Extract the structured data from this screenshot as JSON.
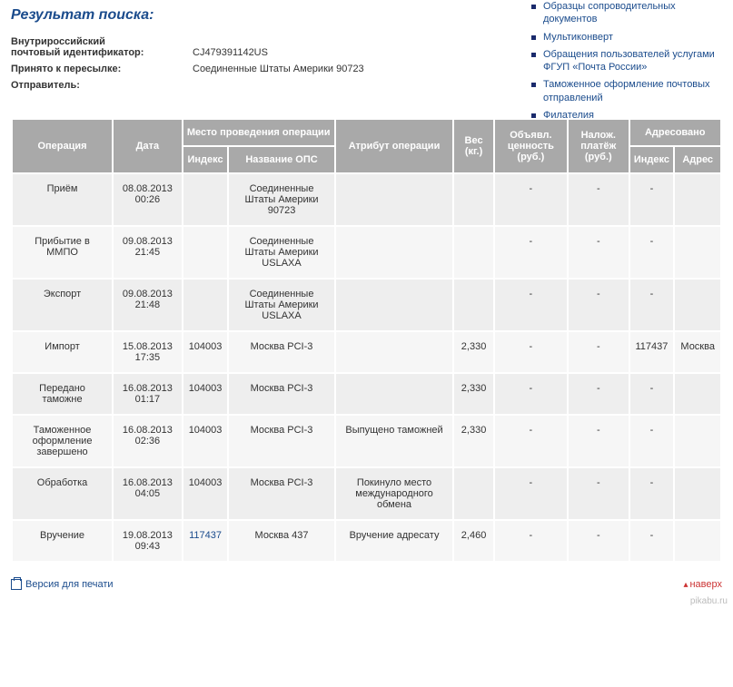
{
  "title": "Результат поиска:",
  "info": {
    "id_label1": "Внутрироссийский",
    "id_label2": "почтовый идентификатор:",
    "id_value": "CJ479391142US",
    "accepted_label": "Принято к пересылке:",
    "accepted_value": "Соединенные Штаты Америки 90723",
    "sender_label": "Отправитель:",
    "sender_value": ""
  },
  "sidebar": {
    "items": [
      {
        "label": "Образцы сопроводительных документов"
      },
      {
        "label": "Мультиконверт"
      },
      {
        "label": "Обращения пользователей услугами ФГУП «Почта России»"
      },
      {
        "label": "Таможенное оформление почтовых отправлений"
      },
      {
        "label": "Филателия"
      }
    ]
  },
  "table": {
    "headers": {
      "operation": "Операция",
      "date": "Дата",
      "place_group": "Место проведения операции",
      "index": "Индекс",
      "ops_name": "Название ОПС",
      "attribute": "Атрибут операции",
      "weight": "Вес (кг.)",
      "declared": "Объявл. ценность (руб.)",
      "cod": "Налож. платёж (руб.)",
      "addressed_group": "Адресовано",
      "addr_index": "Индекс",
      "addr_addr": "Адрес"
    },
    "rows": [
      {
        "op": "Приём",
        "date": "08.08.2013 00:26",
        "idx": "",
        "ops": "Соединенные Штаты Америки 90723",
        "attr": "",
        "weight": "",
        "decl": "-",
        "cod": "-",
        "ai": "-",
        "aa": ""
      },
      {
        "op": "Прибытие в ММПО",
        "date": "09.08.2013 21:45",
        "idx": "",
        "ops": "Соединенные Штаты Америки USLAXA",
        "attr": "",
        "weight": "",
        "decl": "-",
        "cod": "-",
        "ai": "-",
        "aa": ""
      },
      {
        "op": "Экспорт",
        "date": "09.08.2013 21:48",
        "idx": "",
        "ops": "Соединенные Штаты Америки USLAXA",
        "attr": "",
        "weight": "",
        "decl": "-",
        "cod": "-",
        "ai": "-",
        "aa": ""
      },
      {
        "op": "Импорт",
        "date": "15.08.2013 17:35",
        "idx": "104003",
        "ops": "Москва PCI-3",
        "attr": "",
        "weight": "2,330",
        "decl": "-",
        "cod": "-",
        "ai": "117437",
        "aa": "Москва"
      },
      {
        "op": "Передано таможне",
        "date": "16.08.2013 01:17",
        "idx": "104003",
        "ops": "Москва PCI-3",
        "attr": "",
        "weight": "2,330",
        "decl": "-",
        "cod": "-",
        "ai": "-",
        "aa": ""
      },
      {
        "op": "Таможенное оформление завершено",
        "date": "16.08.2013 02:36",
        "idx": "104003",
        "ops": "Москва PCI-3",
        "attr": "Выпущено таможней",
        "weight": "2,330",
        "decl": "-",
        "cod": "-",
        "ai": "-",
        "aa": ""
      },
      {
        "op": "Обработка",
        "date": "16.08.2013 04:05",
        "idx": "104003",
        "ops": "Москва PCI-3",
        "attr": "Покинуло место международного обмена",
        "weight": "",
        "decl": "-",
        "cod": "-",
        "ai": "-",
        "aa": ""
      },
      {
        "op": "Вручение",
        "date": "19.08.2013 09:43",
        "idx": "117437",
        "ops": "Москва 437",
        "attr": "Вручение адресату",
        "weight": "2,460",
        "decl": "-",
        "cod": "-",
        "ai": "-",
        "aa": "",
        "idx_link": true
      }
    ]
  },
  "footer": {
    "print": "Версия для печати",
    "top": "наверх",
    "watermark": "pikabu.ru"
  },
  "colors": {
    "heading": "#1a4b8c",
    "link": "#1a4b8c",
    "th_bg": "#a9a9a9",
    "td_bg": "#eeeeee",
    "td_bg_alt": "#f6f6f6",
    "top_link": "#cc3333"
  }
}
